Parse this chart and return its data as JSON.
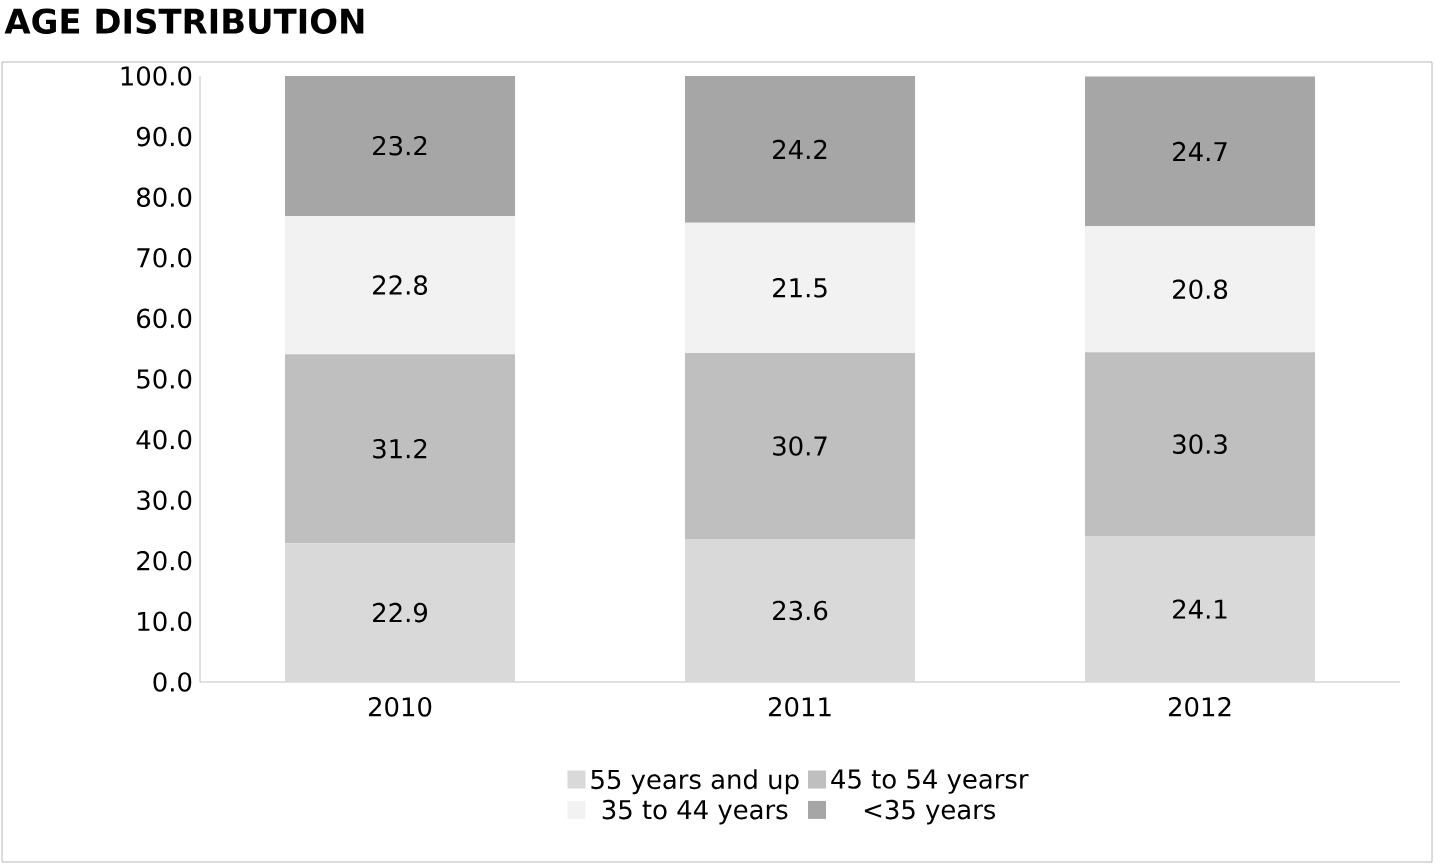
{
  "chart_data": {
    "type": "bar",
    "stacked": true,
    "title": "AGE DISTRIBUTION",
    "categories": [
      "2010",
      "2011",
      "2012"
    ],
    "series": [
      {
        "name": "55 years and up",
        "color": "#d9d9d9",
        "values": [
          22.9,
          23.6,
          24.1
        ]
      },
      {
        "name": "45 to 54 yearsr",
        "color": "#bfbfbf",
        "values": [
          31.2,
          30.7,
          30.3
        ]
      },
      {
        "name": "35 to 44 years",
        "color": "#f2f2f2",
        "values": [
          22.8,
          21.5,
          20.8
        ]
      },
      {
        "name": "<35 years",
        "color": "#a6a6a6",
        "values": [
          23.2,
          24.2,
          24.7
        ]
      }
    ],
    "ylim": [
      0,
      100
    ],
    "yticks": [
      {
        "value": 0,
        "label": "0.0"
      },
      {
        "value": 10,
        "label": "10.0"
      },
      {
        "value": 20,
        "label": "20.0"
      },
      {
        "value": 30,
        "label": "30.0"
      },
      {
        "value": 40,
        "label": "40.0"
      },
      {
        "value": 50,
        "label": "50.0"
      },
      {
        "value": 60,
        "label": "60.0"
      },
      {
        "value": 70,
        "label": "70.0"
      },
      {
        "value": 80,
        "label": "80.0"
      },
      {
        "value": 90,
        "label": "90.0"
      },
      {
        "value": 100,
        "label": "100.0"
      }
    ],
    "data_labels": true,
    "legend": "bottom",
    "grid": false
  }
}
